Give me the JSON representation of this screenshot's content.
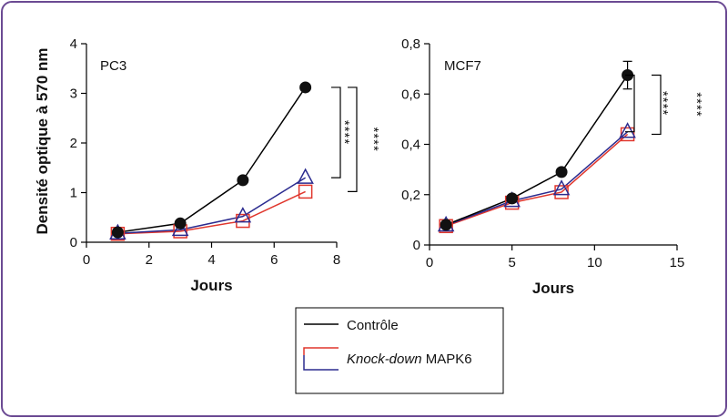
{
  "chart_data": [
    {
      "type": "line",
      "title": "PC3",
      "xlabel": "Jours",
      "ylabel": "Densité optique à 570 nm",
      "xlim": [
        0,
        8
      ],
      "ylim": [
        0,
        4
      ],
      "xticks": [
        "0",
        "2",
        "4",
        "6",
        "8"
      ],
      "yticks": [
        "0",
        "1",
        "2",
        "3",
        "4"
      ],
      "x": [
        1,
        3,
        5,
        7
      ],
      "series": [
        {
          "name": "Contrôle",
          "color": "#000000",
          "marker": "circle",
          "values": [
            0.2,
            0.38,
            1.25,
            3.12
          ]
        },
        {
          "name": "Knock-down MAPK6",
          "color": "#e0362c",
          "marker": "square",
          "values": [
            0.17,
            0.22,
            0.43,
            1.02
          ]
        },
        {
          "name": "Knock-down MAPK6",
          "color": "#2b2b8f",
          "marker": "triangle",
          "values": [
            0.18,
            0.25,
            0.52,
            1.3
          ]
        }
      ],
      "significance": [
        {
          "label": "****",
          "from": 1.3,
          "to": 3.12
        },
        {
          "label": "****",
          "from": 1.02,
          "to": 3.12
        }
      ]
    },
    {
      "type": "line",
      "title": "MCF7",
      "xlabel": "Jours",
      "ylabel": "",
      "xlim": [
        0,
        15
      ],
      "ylim": [
        0,
        0.8
      ],
      "xticks": [
        "0",
        "5",
        "10",
        "15"
      ],
      "yticks": [
        "0",
        "0,2",
        "0,4",
        "0,6",
        "0,8"
      ],
      "x": [
        1,
        5,
        8,
        12
      ],
      "series": [
        {
          "name": "Contrôle",
          "color": "#000000",
          "marker": "circle",
          "values": [
            0.08,
            0.185,
            0.29,
            0.675
          ],
          "errors": [
            0,
            0,
            0,
            0.055
          ]
        },
        {
          "name": "Knock-down MAPK6",
          "color": "#e0362c",
          "marker": "square",
          "values": [
            0.075,
            0.168,
            0.21,
            0.44
          ]
        },
        {
          "name": "Knock-down MAPK6",
          "color": "#2b2b8f",
          "marker": "triangle",
          "values": [
            0.078,
            0.175,
            0.222,
            0.45
          ]
        }
      ],
      "significance": [
        {
          "label": "****",
          "from": 0.45,
          "to": 0.675
        },
        {
          "label": "****",
          "from": 0.44,
          "to": 0.675
        }
      ]
    }
  ],
  "legend": {
    "items": [
      {
        "text": "Contrôle",
        "italic": "",
        "color": "#000000"
      },
      {
        "text": " MAPK6",
        "italic": "Knock-down",
        "color": "#e0362c",
        "color2": "#2b2b8f"
      }
    ]
  }
}
